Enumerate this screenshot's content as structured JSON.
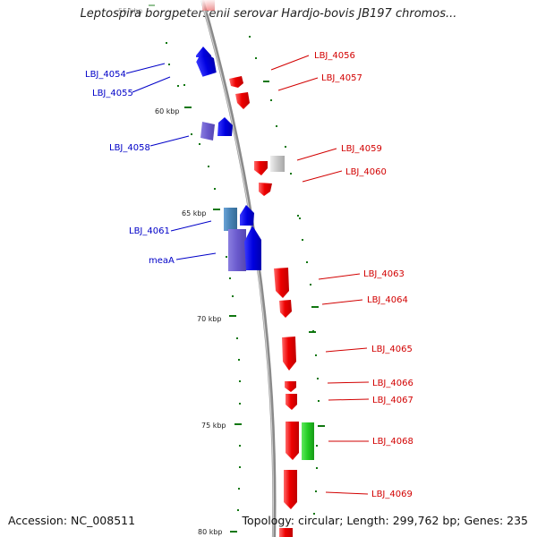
{
  "title": "Leptospira borgpetersenii serovar Hardjo-bovis JB197 chromos...",
  "accession": "Accession: NC_008511",
  "summary": "Topology: circular; Length: 299,762 bp; Genes: 235",
  "colors": {
    "backbone": "#8c8c8c",
    "forward_gene": "#0000ee",
    "reverse_gene": "#ee0000",
    "alt_forward_a": "#6a5acd",
    "alt_forward_b": "#4682b4",
    "other_gene": "#cccccc",
    "rna_gene": "#22cc22",
    "tick": "#117711",
    "left_label": "#0000c8",
    "right_label": "#d20000"
  },
  "ticks": [
    {
      "label": "55 kbp",
      "partial": true
    },
    {
      "label": "60 kbp"
    },
    {
      "label": "65 kbp"
    },
    {
      "label": "70 kbp"
    },
    {
      "label": "75 kbp"
    },
    {
      "label": "80 kbp"
    }
  ],
  "genes": [
    {
      "name": "LBJ_4054",
      "strand": "forward",
      "category": "forward_gene"
    },
    {
      "name": "LBJ_4055",
      "strand": "forward",
      "category": "forward_gene"
    },
    {
      "name": "LBJ_4056",
      "strand": "reverse",
      "category": "reverse_gene"
    },
    {
      "name": "LBJ_4057",
      "strand": "reverse",
      "category": "reverse_gene"
    },
    {
      "name": "LBJ_4058",
      "strand": "forward",
      "category": "alt_forward_a"
    },
    {
      "name": "LBJ_4059",
      "strand": "reverse",
      "category": "reverse_gene"
    },
    {
      "name": "LBJ_4060",
      "strand": "reverse",
      "category": "reverse_gene"
    },
    {
      "name": "LBJ_4061",
      "strand": "forward",
      "category": "alt_forward_b"
    },
    {
      "name": "meaA",
      "strand": "forward",
      "category": "alt_forward_a"
    },
    {
      "name": "LBJ_4063",
      "strand": "reverse",
      "category": "reverse_gene"
    },
    {
      "name": "LBJ_4064",
      "strand": "reverse",
      "category": "reverse_gene"
    },
    {
      "name": "LBJ_4065",
      "strand": "reverse",
      "category": "reverse_gene"
    },
    {
      "name": "LBJ_4066",
      "strand": "reverse",
      "category": "reverse_gene"
    },
    {
      "name": "LBJ_4067",
      "strand": "reverse",
      "category": "reverse_gene"
    },
    {
      "name": "LBJ_4068",
      "strand": "reverse",
      "category": "reverse_gene"
    },
    {
      "name": "LBJ_4069",
      "strand": "reverse",
      "category": "reverse_gene"
    }
  ]
}
